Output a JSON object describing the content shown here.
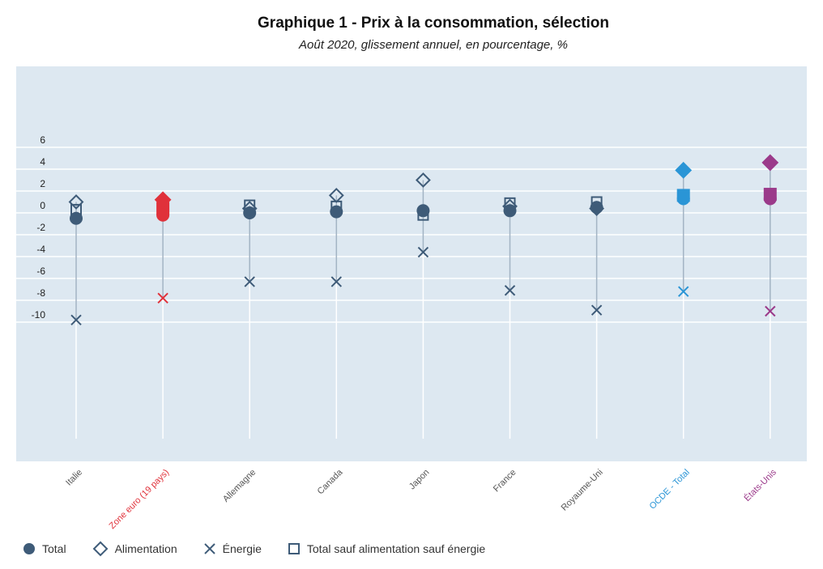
{
  "title": "Graphique 1 - Prix à la consommation, sélection",
  "subtitle": "Août 2020, glissement annuel, en pourcentage, %",
  "colors": {
    "default": "#3e5b78",
    "euro": "#e0313a",
    "oecd": "#2a95d6",
    "us": "#9b3a8a",
    "plot_bg": "#dde8f1",
    "grid": "#ffffff",
    "stem": "#a3b4c4"
  },
  "legend": [
    {
      "label": "Total",
      "icon": "filled-circle"
    },
    {
      "label": "Alimentation",
      "icon": "hollow-diamond"
    },
    {
      "label": "Énergie",
      "icon": "cross"
    },
    {
      "label": "Total sauf alimentation sauf énergie",
      "icon": "hollow-square"
    }
  ],
  "chart_data": {
    "type": "scatter",
    "title": "Graphique 1 - Prix à la consommation, sélection",
    "subtitle": "Août 2020, glissement annuel, en pourcentage, %",
    "categories": [
      "Italie",
      "Zone euro (19 pays)",
      "Allemagne",
      "Canada",
      "Japon",
      "France",
      "Royaume-Uni",
      "OCDE - Total",
      "États-Unis"
    ],
    "category_colors": [
      "default",
      "euro",
      "default",
      "default",
      "default",
      "default",
      "default",
      "oecd",
      "us"
    ],
    "ylim": [
      -11,
      6.5
    ],
    "yticks": [
      6,
      4,
      2,
      0,
      -2,
      -4,
      -6,
      -8,
      -10
    ],
    "grid": true,
    "legend_position": "bottom-left",
    "series": [
      {
        "name": "Total",
        "marker": "circle",
        "values": [
          -0.5,
          -0.2,
          0.0,
          0.1,
          0.2,
          0.2,
          0.5,
          1.3,
          1.3
        ]
      },
      {
        "name": "Alimentation",
        "marker": "diamond",
        "values": [
          1.0,
          1.2,
          0.4,
          1.6,
          3.0,
          0.6,
          0.4,
          3.9,
          4.6
        ]
      },
      {
        "name": "Énergie",
        "marker": "cross",
        "values": [
          -9.8,
          -7.8,
          -6.3,
          -6.3,
          -3.6,
          -7.1,
          -8.9,
          -7.2,
          -9.0
        ]
      },
      {
        "name": "Total sauf alimentation sauf énergie",
        "marker": "square",
        "values": [
          0.3,
          0.4,
          0.7,
          0.6,
          -0.2,
          0.9,
          1.0,
          1.6,
          1.7
        ]
      }
    ]
  }
}
